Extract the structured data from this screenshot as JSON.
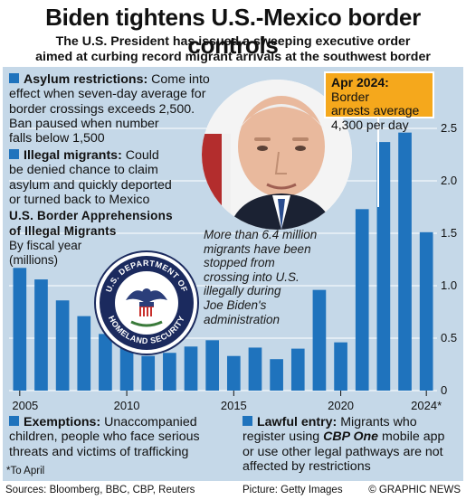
{
  "header": {
    "title": "Biden tightens U.S.-Mexico border controls",
    "subtitle_line1": "The U.S. President has issued a sweeping executive order",
    "subtitle_line2": "aimed at curbing record migrant arrivals at the southwest border"
  },
  "notes": {
    "asylum": {
      "heading": "Asylum restrictions:",
      "line1": " Come into",
      "line2": "effect when seven-day average for",
      "line3": "border crossings exceeds 2,500.",
      "line4": "Ban paused when number",
      "line5": "falls below 1,500"
    },
    "illegal": {
      "heading": "Illegal migrants:",
      "line1": " Could",
      "line2": "be denied chance to claim",
      "line3": "asylum and quickly deported",
      "line4": "or turned back to Mexico"
    },
    "exemptions": {
      "heading": "Exemptions:",
      "line1": " Unaccompanied",
      "line2": "children, people who face serious",
      "line3": "threats and victims of trafficking"
    },
    "lawful": {
      "heading": "Lawful entry:",
      "line1": " Migrants who",
      "line2a": "register using ",
      "line2b": "CBP One",
      "line2c": " mobile app",
      "line3": "or use other legal pathways are not",
      "line4": "affected by restrictions"
    }
  },
  "callout": {
    "heading": "Apr 2024:",
    "line1": " Border",
    "line2": "arrests average",
    "line3": "4,300 per day"
  },
  "annotation": {
    "line1": "More than 6.4 million",
    "line2": "migrants have been",
    "line3": "stopped from",
    "line4": "crossing into U.S.",
    "line5": "illegally during",
    "line6": "Joe Biden's",
    "line7": "administration"
  },
  "seal": {
    "text_top": "U.S. DEPARTMENT OF",
    "text_bottom": "HOMELAND SECURITY"
  },
  "footnote": "*To April",
  "footer": {
    "sources": "Sources: Bloomberg, BBC, CBP, Reuters",
    "picture": "Picture: Getty Images",
    "brand": "© GRAPHIC NEWS"
  },
  "colors": {
    "background": "#c5d8e8",
    "bar": "#1f73bd",
    "accent": "#f5a81c",
    "text": "#111111"
  },
  "chart_data": {
    "type": "bar",
    "title_line1": "U.S. Border Apprehensions",
    "title_line2": "of Illegal Migrants",
    "subtitle_line1": "By fiscal year",
    "subtitle_line2": "(millions)",
    "categories": [
      "2005",
      "2006",
      "2007",
      "2008",
      "2009",
      "2010",
      "2011",
      "2012",
      "2013",
      "2014",
      "2015",
      "2016",
      "2017",
      "2018",
      "2019",
      "2020",
      "2021",
      "2022",
      "2023",
      "2024"
    ],
    "x_tick_labels": [
      "2005",
      "2010",
      "2015",
      "2020",
      "2024*"
    ],
    "x_tick_categories": [
      "2005",
      "2010",
      "2015",
      "2020",
      "2024"
    ],
    "values": [
      1.17,
      1.06,
      0.86,
      0.71,
      0.54,
      0.45,
      0.33,
      0.36,
      0.42,
      0.48,
      0.33,
      0.41,
      0.3,
      0.4,
      0.96,
      0.46,
      1.73,
      2.37,
      2.46,
      1.51
    ],
    "y_ticks": [
      "0",
      "0.5",
      "1.0",
      "1.5",
      "2.0",
      "2.5"
    ],
    "y_tick_values": [
      0,
      0.5,
      1.0,
      1.5,
      2.0,
      2.5
    ],
    "ylim": [
      0,
      2.75
    ],
    "grid": true
  }
}
